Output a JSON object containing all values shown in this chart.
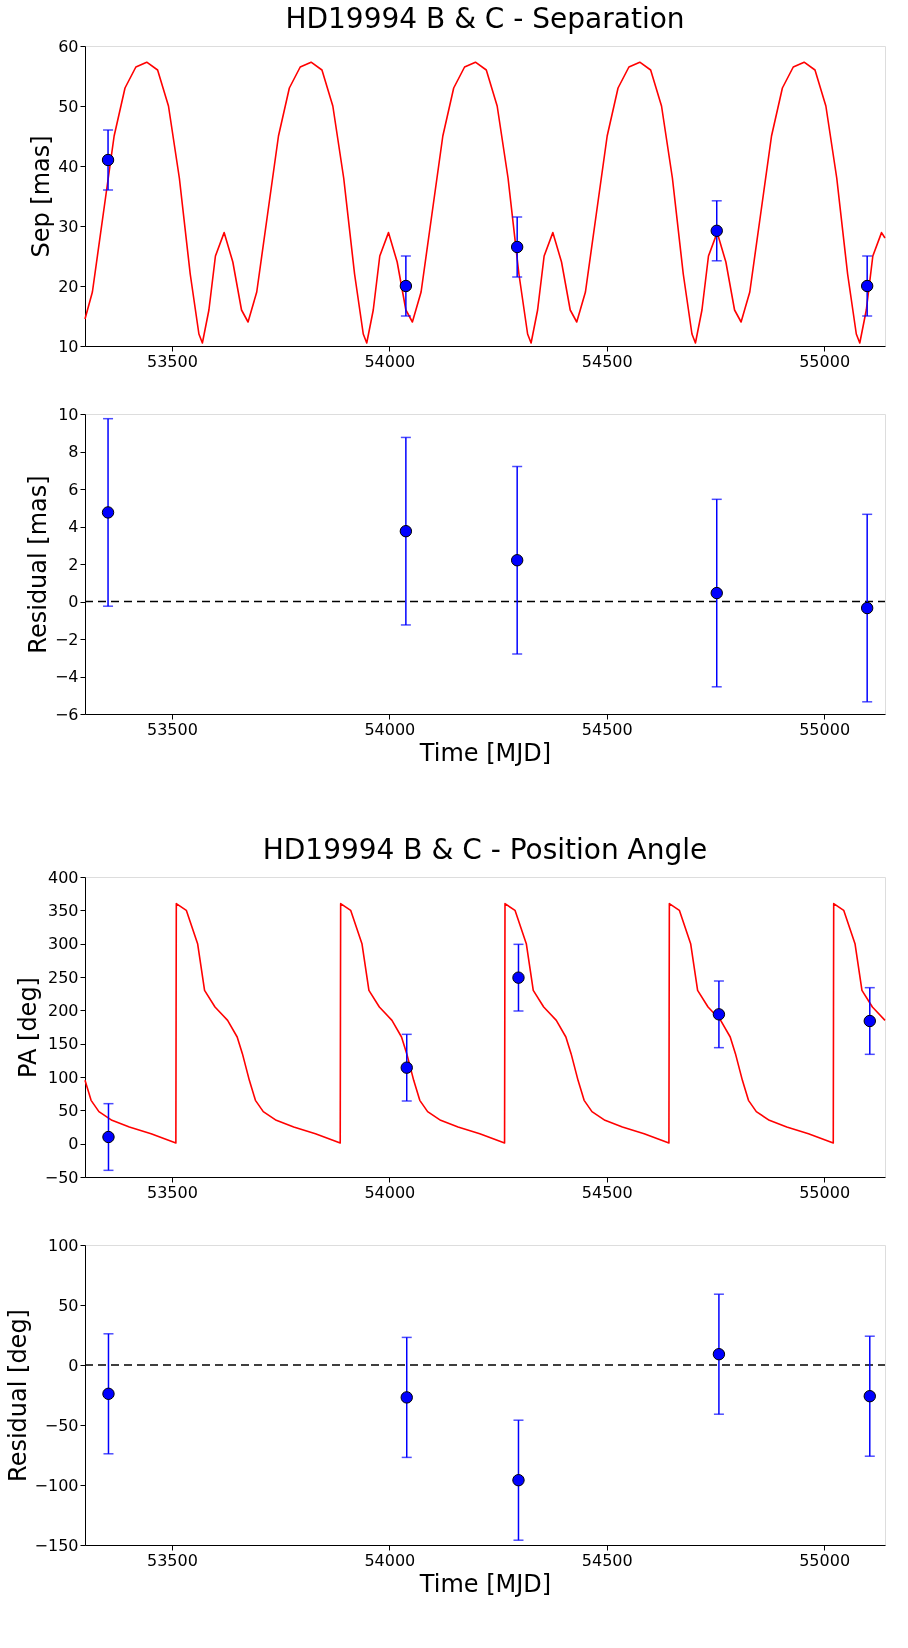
{
  "chart_data": [
    {
      "type": "scatter",
      "title": "HD19994 B & C - Separation",
      "ylabel": "Sep [mas]",
      "xlim": [
        53300,
        55140
      ],
      "xticks": [
        53500,
        54000,
        54500,
        55000
      ],
      "ylim": [
        10,
        60
      ],
      "yticks": [
        10,
        20,
        30,
        40,
        50,
        60
      ],
      "marker": "circle",
      "series": [
        {
          "type": "line",
          "marker": "none",
          "color": "#ff0000",
          "line_style": "solid",
          "x": [
            53300,
            53317,
            53342,
            53367,
            53392,
            53417,
            53442,
            53467,
            53492,
            53517,
            53542,
            53562,
            53570,
            53585,
            53600,
            53620,
            53640,
            53660,
            53675,
            53695,
            53720,
            53745,
            53770,
            53795,
            53820,
            53845,
            53870,
            53895,
            53920,
            53940,
            53948,
            53963,
            53978,
            53998,
            54018,
            54038,
            54053,
            54073,
            54098,
            54123,
            54148,
            54173,
            54198,
            54223,
            54248,
            54273,
            54298,
            54318,
            54326,
            54341,
            54356,
            54376,
            54396,
            54416,
            54431,
            54451,
            54476,
            54501,
            54526,
            54551,
            54576,
            54601,
            54626,
            54651,
            54676,
            54696,
            54704,
            54719,
            54734,
            54754,
            54774,
            54794,
            54809,
            54829,
            54854,
            54879,
            54904,
            54929,
            54954,
            54979,
            55004,
            55029,
            55054,
            55074,
            55082,
            55097,
            55112,
            55132,
            55140
          ],
          "values": [
            14.5,
            19,
            32,
            45,
            53,
            56.5,
            57.3,
            56,
            50,
            38,
            22,
            12,
            10.5,
            16,
            25,
            28.9,
            24,
            16,
            14,
            19,
            32,
            45,
            53,
            56.5,
            57.3,
            56,
            50,
            38,
            22,
            12,
            10.5,
            16,
            25,
            28.9,
            24,
            16,
            14,
            19,
            32,
            45,
            53,
            56.5,
            57.3,
            56,
            50,
            38,
            22,
            12,
            10.5,
            16,
            25,
            28.9,
            24,
            16,
            14,
            19,
            32,
            45,
            53,
            56.5,
            57.3,
            56,
            50,
            38,
            22,
            12,
            10.5,
            16,
            25,
            28.9,
            24,
            16,
            14,
            19,
            32,
            45,
            53,
            56.5,
            57.3,
            56,
            50,
            38,
            22,
            12,
            10.5,
            16,
            25,
            28.9,
            28
          ]
        },
        {
          "color": "#0000ff",
          "x": [
            53353,
            54038,
            54294,
            54753,
            55099
          ],
          "values": [
            41,
            20,
            26.5,
            29.2,
            20
          ],
          "errors": [
            5,
            5,
            5,
            5,
            5
          ]
        }
      ]
    },
    {
      "type": "scatter",
      "xlabel": "Time [MJD]",
      "ylabel": "Residual [mas]",
      "xlim": [
        53300,
        55140
      ],
      "xticks": [
        53500,
        54000,
        54500,
        55000
      ],
      "ylim": [
        -6,
        10
      ],
      "yticks": [
        -6,
        -4,
        -2,
        0,
        2,
        4,
        6,
        8,
        10
      ],
      "marker": "circle",
      "ref_lines": [
        {
          "axis": "y",
          "value": 0,
          "color": "#000000",
          "line_style": "dashed"
        }
      ],
      "series": [
        {
          "color": "#0000ff",
          "x": [
            53353,
            54038,
            54294,
            54753,
            55099
          ],
          "values": [
            4.75,
            3.75,
            2.2,
            0.45,
            -0.35
          ],
          "errors": [
            5,
            5,
            5,
            5,
            5
          ]
        }
      ]
    },
    {
      "type": "scatter",
      "title": "HD19994 B & C - Position Angle",
      "ylabel": "PA [deg]",
      "xlim": [
        53300,
        55140
      ],
      "xticks": [
        53500,
        54000,
        54500,
        55000
      ],
      "ylim": [
        -50,
        400
      ],
      "yticks": [
        -50,
        0,
        50,
        100,
        150,
        200,
        250,
        300,
        350,
        400
      ],
      "marker": "circle",
      "series": [
        {
          "type": "line",
          "marker": "none",
          "color": "#ff0000",
          "line_style": "solid",
          "x": [
            53300,
            53314,
            53332,
            53362,
            53402,
            53452,
            53509,
            53510,
            53533,
            53559,
            53575,
            53599,
            53628,
            53650,
            53662,
            53678,
            53692,
            53710,
            53740,
            53780,
            53830,
            53887,
            53888,
            53911,
            53937,
            53953,
            53977,
            54006,
            54028,
            54040,
            54056,
            54070,
            54088,
            54118,
            54158,
            54208,
            54265,
            54266,
            54289,
            54315,
            54331,
            54355,
            54384,
            54406,
            54418,
            54434,
            54448,
            54466,
            54496,
            54536,
            54586,
            54643,
            54644,
            54667,
            54693,
            54709,
            54733,
            54762,
            54784,
            54796,
            54812,
            54826,
            54844,
            54874,
            54914,
            54964,
            55021,
            55022,
            55045,
            55071,
            55087,
            55111,
            55140
          ],
          "values": [
            95,
            65,
            48,
            35,
            25,
            15,
            1,
            360,
            350,
            300,
            230,
            205,
            185,
            160,
            135,
            95,
            65,
            48,
            35,
            25,
            15,
            1,
            360,
            350,
            300,
            230,
            205,
            185,
            160,
            135,
            95,
            65,
            48,
            35,
            25,
            15,
            1,
            360,
            350,
            300,
            230,
            205,
            185,
            160,
            135,
            95,
            65,
            48,
            35,
            25,
            15,
            1,
            360,
            350,
            300,
            230,
            205,
            185,
            160,
            135,
            95,
            65,
            48,
            35,
            25,
            15,
            1,
            360,
            350,
            300,
            230,
            205,
            185
          ]
        },
        {
          "color": "#0000ff",
          "x": [
            53354,
            54040,
            54297,
            54758,
            55105
          ],
          "values": [
            10,
            114,
            249,
            194,
            184
          ],
          "errors": [
            50,
            50,
            50,
            50,
            50
          ]
        }
      ]
    },
    {
      "type": "scatter",
      "xlabel": "Time [MJD]",
      "ylabel": "Residual [deg]",
      "xlim": [
        53300,
        55140
      ],
      "xticks": [
        53500,
        54000,
        54500,
        55000
      ],
      "ylim": [
        -150,
        100
      ],
      "yticks": [
        -150,
        -100,
        -50,
        0,
        50,
        100
      ],
      "marker": "circle",
      "ref_lines": [
        {
          "axis": "y",
          "value": 0,
          "color": "#000000",
          "line_style": "dashed"
        }
      ],
      "series": [
        {
          "color": "#0000ff",
          "x": [
            53354,
            54040,
            54297,
            54758,
            55105
          ],
          "values": [
            -24,
            -27,
            -96,
            9,
            -26
          ],
          "errors": [
            50,
            50,
            50,
            50,
            50
          ]
        }
      ]
    }
  ]
}
